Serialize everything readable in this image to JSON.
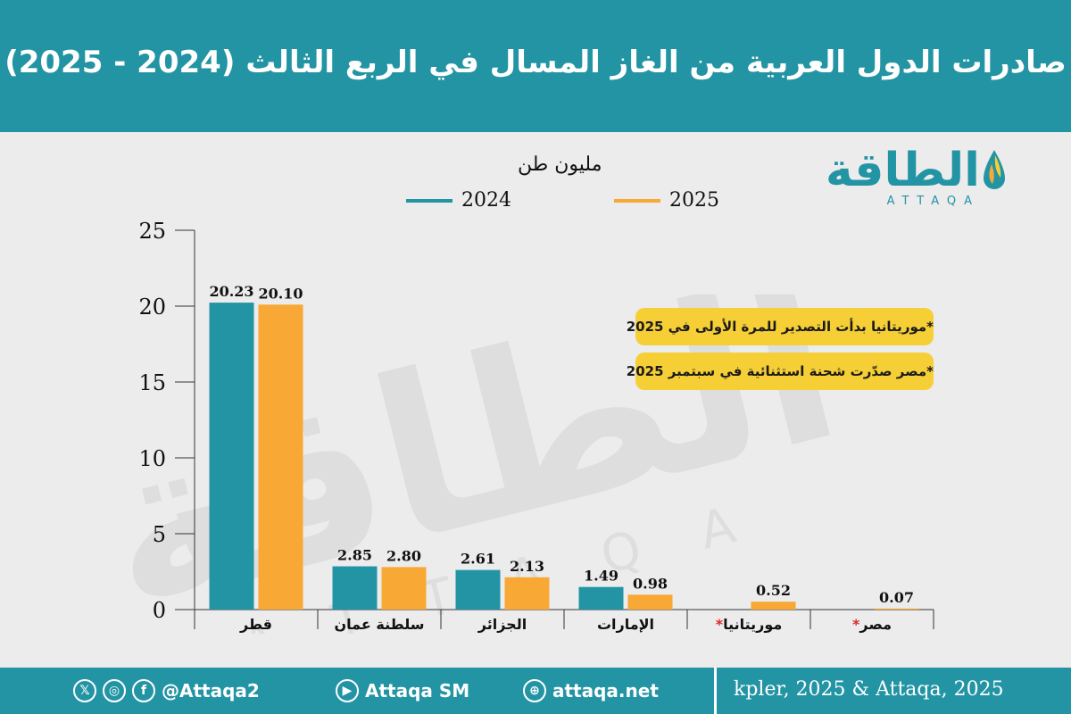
{
  "header": {
    "title": "صادرات الدول العربية من الغاز المسال  في الربع الثالث (2024 - 2025)"
  },
  "logo": {
    "text": "الطاقة",
    "sub": "ATTAQA"
  },
  "notes": [
    "*موريتانيا بدأت التصدير للمرة الأولى في 2025",
    "*مصر صدّرت شحنة استثنائية في سبتمبر 2025"
  ],
  "footer": {
    "twitter_icon": "x-icon",
    "instagram_icon": "instagram-icon",
    "facebook_icon": "facebook-icon",
    "handle": "@Attaqa2",
    "youtube_icon": "youtube-icon",
    "youtube": "Attaqa SM",
    "web_icon": "globe-icon",
    "website": "attaqa.net",
    "source": "kpler, 2025 & Attaqa, 2025"
  },
  "colors": {
    "teal": "#2394a4",
    "orange": "#f8a835",
    "note_bg": "#f6cf36",
    "asterisk": "#e0252b"
  },
  "chart_data": {
    "type": "bar",
    "title": "",
    "ylabel": "مليون طن",
    "xlabel": "",
    "ylim": [
      0,
      25
    ],
    "yticks": [
      0,
      5,
      10,
      15,
      20,
      25
    ],
    "grid": false,
    "legend_position": "top",
    "categories": [
      "قطر",
      "سلطنة عمان",
      "الجزائر",
      "الإمارات",
      "موريتانيا",
      "مصر"
    ],
    "category_asterisk": [
      false,
      false,
      false,
      false,
      true,
      true
    ],
    "series": [
      {
        "name": "2024",
        "color": "#2394a4",
        "values": [
          20.23,
          2.85,
          2.61,
          1.49,
          null,
          null
        ],
        "labels": [
          "20.23",
          "2.85",
          "2.61",
          "1.49",
          "",
          ""
        ]
      },
      {
        "name": "2025",
        "color": "#f8a835",
        "values": [
          20.1,
          2.8,
          2.13,
          0.98,
          0.52,
          0.07
        ],
        "labels": [
          "20.10",
          "2.80",
          "2.13",
          "0.98",
          "0.52",
          "0.07"
        ]
      }
    ]
  }
}
